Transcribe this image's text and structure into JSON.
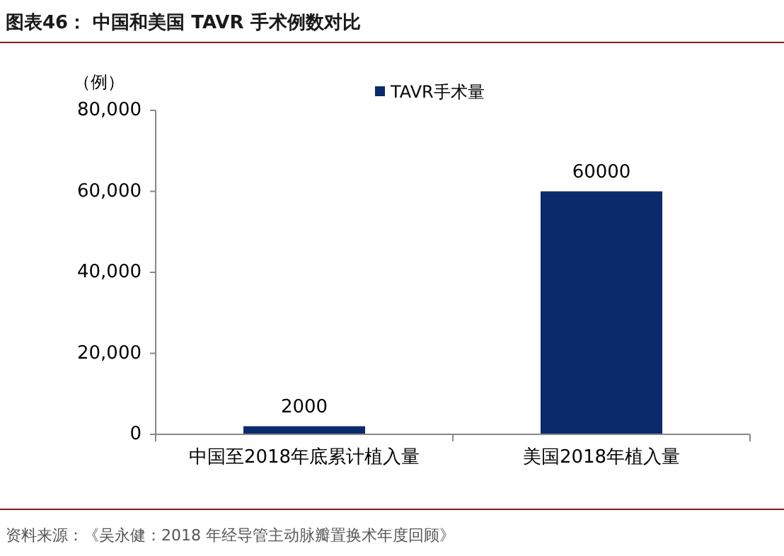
{
  "chart_data": {
    "type": "bar",
    "title": "图表46：  中国和美国 TAVR 手术例数对比",
    "ylabel": "（例）",
    "categories": [
      "中国至2018年底累计植入量",
      "美国2018年植入量"
    ],
    "series": [
      {
        "name": "TAVR手术量",
        "color": "#0b2a6b",
        "values": [
          2000,
          60000
        ]
      }
    ],
    "ylim": [
      0,
      80000
    ],
    "yticks": [
      0,
      {
        "value": 20000,
        "label": "20,000"
      },
      {
        "value": 40000,
        "label": "40,000"
      },
      {
        "value": 60000,
        "label": "60,000"
      },
      {
        "value": 80000,
        "label": "80,000"
      }
    ],
    "data_labels": true,
    "legend": "top",
    "grid": false,
    "annotations": [
      "资料来源：《吴永健：2018 年经导管主动脉瓣置换术年度回顾》"
    ]
  }
}
